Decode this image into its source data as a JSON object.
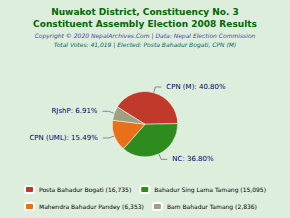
{
  "chart_data": {
    "type": "pie",
    "title": "Nuwakot District, Constituency No. 3",
    "subtitle": "Constituent Assembly Election 2008 Results",
    "annotations": [
      "Copyright © 2020 NepalArchives.Com | Data: Nepal Election Commission",
      "Total Votes: 41,019 | Elected: Posta Bahadur Bogati, CPN (M)"
    ],
    "categories": [
      "Posta Bahadur Bogati (16,735)",
      "Bahadur Sing Lama Tamang (15,095)",
      "Mahendra Bahadur Pandey (6,353)",
      "Bam Bahadur Tamang (2,836)"
    ],
    "values": [
      40.8,
      36.8,
      15.49,
      6.91
    ],
    "value_labels": [
      "CPN (M): 40.80%",
      "NC: 36.80%",
      "CPN (UML): 15.49%",
      "RJshP: 6.91%"
    ],
    "colors": [
      "#c0392b",
      "#2e8b1e",
      "#e8701a",
      "#a0a080"
    ],
    "data_labels": true,
    "legend": "bottom"
  }
}
